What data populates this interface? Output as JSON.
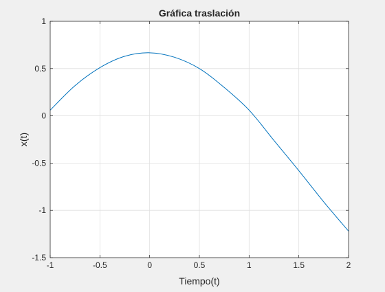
{
  "chart_data": {
    "type": "line",
    "title": "Gráfica traslación",
    "xlabel": "Tiempo(t)",
    "ylabel": "x(t)",
    "xlim": [
      -1,
      2
    ],
    "ylim": [
      -1.5,
      1
    ],
    "x_ticks": [
      "-1",
      "-0.5",
      "0",
      "0.5",
      "1",
      "1.5",
      "2"
    ],
    "y_ticks": [
      "1",
      "0.5",
      "0",
      "-0.5",
      "-1",
      "-1.5"
    ],
    "grid": true,
    "series": [
      {
        "color": "#0072bd",
        "x": [
          -1.0,
          -0.75,
          -0.5,
          -0.25,
          0.0,
          0.25,
          0.5,
          0.75,
          1.0,
          1.25,
          1.5,
          1.75,
          2.0
        ],
        "y": [
          0.06,
          0.32,
          0.51,
          0.63,
          0.667,
          0.62,
          0.5,
          0.3,
          0.06,
          -0.26,
          -0.58,
          -0.91,
          -1.22
        ]
      }
    ]
  }
}
